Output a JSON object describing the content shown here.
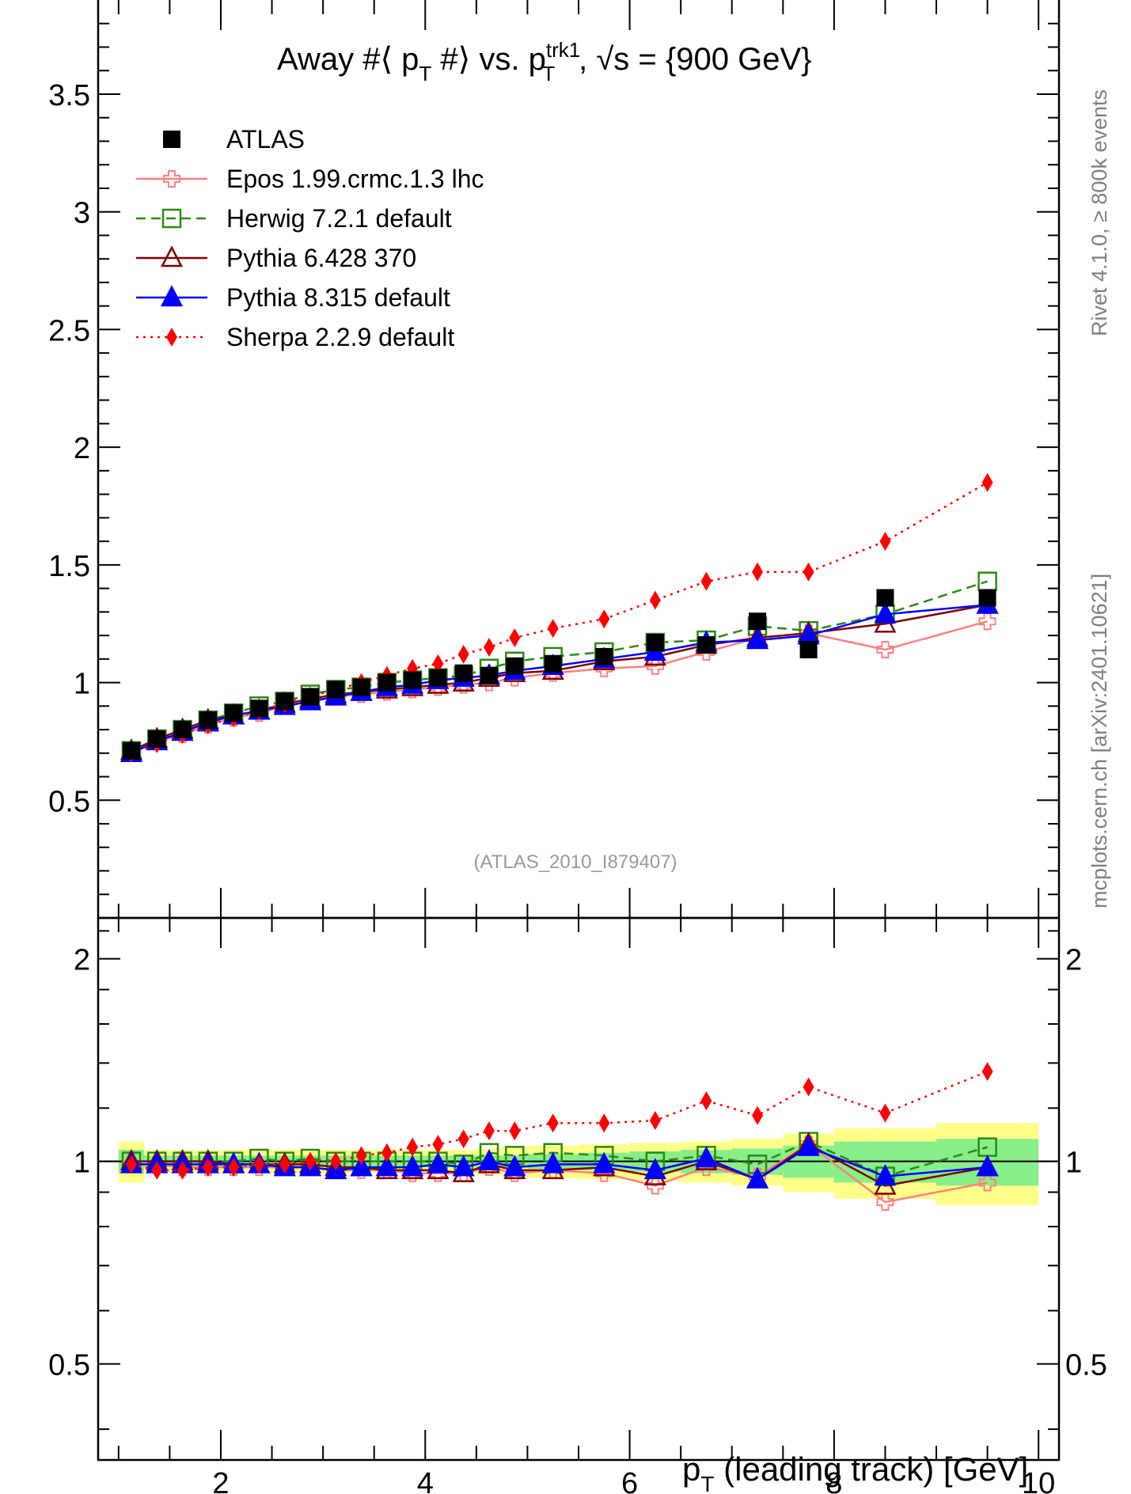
{
  "chart_data": [
    {
      "type": "line",
      "title": "Away #⟨ p_T #⟩ vs. p_T^trk1, √s = {900 GeV}",
      "xlim": [
        0.8,
        10.2
      ],
      "ylim": [
        0,
        3.9
      ],
      "yticks": [
        "0.5",
        "1",
        "1.5",
        "2",
        "2.5",
        "3",
        "3.5"
      ],
      "ytick_values": [
        0.5,
        1,
        1.5,
        2,
        2.5,
        3,
        3.5
      ],
      "legend_placement": "top-left",
      "x": [
        1.125,
        1.375,
        1.625,
        1.875,
        2.125,
        2.375,
        2.625,
        2.875,
        3.125,
        3.375,
        3.625,
        3.875,
        4.125,
        4.375,
        4.625,
        4.875,
        5.25,
        5.75,
        6.25,
        6.75,
        7.25,
        7.75,
        8.5,
        9.5
      ],
      "series": [
        {
          "name": "ATLAS",
          "color": "#000000",
          "marker": "square-filled",
          "line": "none",
          "values": [
            0.71,
            0.76,
            0.8,
            0.84,
            0.87,
            0.89,
            0.92,
            0.94,
            0.97,
            0.98,
            1.0,
            1.01,
            1.02,
            1.04,
            1.03,
            1.07,
            1.08,
            1.11,
            1.17,
            1.16,
            1.26,
            1.14,
            1.36,
            1.36
          ]
        },
        {
          "name": "Epos 1.99.crmc.1.3 lhc",
          "color": "#ff7f7f",
          "marker": "cross-open",
          "line": "solid",
          "values": [
            0.7,
            0.75,
            0.78,
            0.82,
            0.85,
            0.87,
            0.9,
            0.92,
            0.94,
            0.95,
            0.96,
            0.97,
            0.98,
            0.99,
            1.0,
            1.02,
            1.04,
            1.06,
            1.07,
            1.13,
            1.19,
            1.21,
            1.14,
            1.26
          ]
        },
        {
          "name": "Herwig 7.2.1 default",
          "color": "#2a8a14",
          "marker": "square-open",
          "line": "dashed",
          "values": [
            0.71,
            0.76,
            0.8,
            0.84,
            0.87,
            0.9,
            0.92,
            0.95,
            0.97,
            0.98,
            1.0,
            1.01,
            1.02,
            1.03,
            1.06,
            1.09,
            1.11,
            1.13,
            1.17,
            1.18,
            1.24,
            1.22,
            1.29,
            1.43
          ]
        },
        {
          "name": "Pythia 6.428 370",
          "color": "#800000",
          "marker": "triangle-open",
          "line": "solid",
          "values": [
            0.71,
            0.76,
            0.8,
            0.84,
            0.86,
            0.88,
            0.91,
            0.93,
            0.95,
            0.96,
            0.97,
            0.98,
            0.99,
            1.0,
            1.02,
            1.04,
            1.05,
            1.09,
            1.11,
            1.16,
            1.19,
            1.21,
            1.25,
            1.33
          ]
        },
        {
          "name": "Pythia 8.315 default",
          "color": "#0000ff",
          "marker": "triangle-filled",
          "line": "solid",
          "values": [
            0.7,
            0.75,
            0.79,
            0.83,
            0.86,
            0.88,
            0.9,
            0.92,
            0.94,
            0.96,
            0.98,
            0.99,
            1.01,
            1.02,
            1.03,
            1.05,
            1.07,
            1.1,
            1.13,
            1.17,
            1.18,
            1.2,
            1.29,
            1.33
          ]
        },
        {
          "name": "Sherpa 2.2.9 default",
          "color": "#ff0000",
          "marker": "diamond-filled",
          "line": "dotted",
          "values": [
            0.7,
            0.74,
            0.78,
            0.82,
            0.85,
            0.88,
            0.91,
            0.94,
            0.97,
            1.0,
            1.03,
            1.06,
            1.08,
            1.12,
            1.15,
            1.19,
            1.23,
            1.27,
            1.35,
            1.43,
            1.47,
            1.47,
            1.6,
            1.85
          ]
        }
      ]
    },
    {
      "type": "line",
      "xlim": [
        0.8,
        10.2
      ],
      "ylim": [
        0.36,
        2.3
      ],
      "yscale": "log",
      "yticks": [
        "0.5",
        "1",
        "2"
      ],
      "ytick_values": [
        0.5,
        1,
        2
      ],
      "xticks": [
        "2",
        "4",
        "6",
        "8",
        "10"
      ],
      "xtick_values": [
        2,
        4,
        6,
        8,
        10
      ],
      "xlabel": "p_T (leading track) [GeV]",
      "x": [
        1.125,
        1.375,
        1.625,
        1.875,
        2.125,
        2.375,
        2.625,
        2.875,
        3.125,
        3.375,
        3.625,
        3.875,
        4.125,
        4.375,
        4.625,
        4.875,
        5.25,
        5.75,
        6.25,
        6.75,
        7.25,
        7.75,
        8.5,
        9.5
      ],
      "band_edges": [
        1.0,
        1.25,
        1.5,
        1.75,
        2.0,
        2.25,
        2.5,
        2.75,
        3.0,
        3.25,
        3.5,
        3.75,
        4.0,
        4.25,
        4.5,
        4.75,
        5.0,
        5.5,
        6.0,
        6.5,
        7.0,
        7.5,
        8.0,
        9.0,
        10.0
      ],
      "band_inner": [
        0.04,
        0.02,
        0.02,
        0.02,
        0.02,
        0.02,
        0.02,
        0.02,
        0.02,
        0.02,
        0.02,
        0.02,
        0.02,
        0.02,
        0.02,
        0.02,
        0.025,
        0.03,
        0.035,
        0.04,
        0.045,
        0.055,
        0.07,
        0.08
      ],
      "band_outer": [
        0.07,
        0.04,
        0.04,
        0.04,
        0.04,
        0.04,
        0.04,
        0.04,
        0.04,
        0.04,
        0.04,
        0.04,
        0.04,
        0.04,
        0.045,
        0.05,
        0.055,
        0.06,
        0.065,
        0.07,
        0.08,
        0.1,
        0.12,
        0.14
      ],
      "series": [
        {
          "name": "Epos 1.99.crmc.1.3 lhc",
          "color": "#ff7f7f",
          "marker": "cross-open",
          "line": "solid",
          "values": [
            0.99,
            0.99,
            0.98,
            0.98,
            0.98,
            0.98,
            0.98,
            0.98,
            0.97,
            0.97,
            0.97,
            0.96,
            0.96,
            0.96,
            0.98,
            0.96,
            0.97,
            0.96,
            0.92,
            0.98,
            0.95,
            1.06,
            0.87,
            0.93
          ]
        },
        {
          "name": "Herwig 7.2.1 default",
          "color": "#2a8a14",
          "marker": "square-open",
          "line": "dashed",
          "values": [
            1.0,
            1.0,
            1.0,
            1.0,
            1.0,
            1.01,
            1.0,
            1.01,
            1.0,
            1.0,
            1.0,
            1.0,
            1.0,
            0.99,
            1.03,
            1.02,
            1.03,
            1.02,
            1.0,
            1.02,
            0.99,
            1.07,
            0.95,
            1.05
          ]
        },
        {
          "name": "Pythia 6.428 370",
          "color": "#800000",
          "marker": "triangle-open",
          "line": "solid",
          "values": [
            1.0,
            1.0,
            1.0,
            1.0,
            0.99,
            0.99,
            0.99,
            0.99,
            0.98,
            0.98,
            0.97,
            0.97,
            0.97,
            0.96,
            0.99,
            0.97,
            0.97,
            0.98,
            0.95,
            1.0,
            0.94,
            1.06,
            0.92,
            0.98
          ]
        },
        {
          "name": "Pythia 8.315 default",
          "color": "#0000ff",
          "marker": "triangle-filled",
          "line": "solid",
          "values": [
            0.99,
            0.99,
            0.99,
            0.99,
            0.99,
            0.99,
            0.98,
            0.98,
            0.97,
            0.98,
            0.98,
            0.98,
            0.99,
            0.98,
            1.0,
            0.98,
            0.99,
            0.99,
            0.97,
            1.01,
            0.94,
            1.05,
            0.95,
            0.98
          ]
        },
        {
          "name": "Sherpa 2.2.9 default",
          "color": "#ff0000",
          "marker": "diamond-filled",
          "line": "dotted",
          "values": [
            0.99,
            0.97,
            0.97,
            0.98,
            0.98,
            0.99,
            0.99,
            1.0,
            1.0,
            1.02,
            1.03,
            1.05,
            1.06,
            1.08,
            1.11,
            1.11,
            1.14,
            1.14,
            1.15,
            1.23,
            1.17,
            1.29,
            1.18,
            1.36
          ]
        }
      ]
    }
  ],
  "side_text_right": "Rivet 4.1.0, ≥ 800k events",
  "side_text_left": "mcplots.cern.ch [arXiv:2401.10621]",
  "analysis_label": "(ATLAS_2010_I879407)"
}
